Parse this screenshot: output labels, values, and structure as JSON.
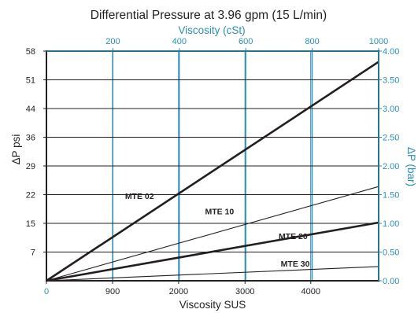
{
  "chart_data": {
    "type": "line",
    "title": "Differential Pressure at 3.96 gpm (15 L/min)",
    "x_axis_bottom": {
      "label": "Viscosity SUS",
      "range": [
        0,
        4650
      ],
      "ticks": [
        {
          "value": 0,
          "label": "0"
        },
        {
          "value": 926,
          "label": "900"
        },
        {
          "value": 1850,
          "label": "2000"
        },
        {
          "value": 2780,
          "label": "3000"
        },
        {
          "value": 3700,
          "label": "4000"
        }
      ]
    },
    "x_axis_top": {
      "label": "Viscosity (cSt)",
      "range": [
        0,
        1000
      ],
      "ticks": [
        "200",
        "400",
        "600",
        "800",
        "1000"
      ],
      "tick_values": [
        200,
        400,
        600,
        800,
        1000
      ]
    },
    "y_axis_left": {
      "label": "ΔP psi",
      "range": [
        0,
        58
      ],
      "ticks": [
        "7",
        "15",
        "22",
        "29",
        "36",
        "44",
        "51",
        "58"
      ],
      "tick_values": [
        7.25,
        14.5,
        21.75,
        29,
        36.25,
        43.5,
        50.75,
        58
      ]
    },
    "y_axis_right": {
      "label": "ΔP (bar)",
      "range": [
        0,
        4.0
      ],
      "ticks": [
        "0.00",
        "0.50",
        "1.00",
        "1.50",
        "2.00",
        "2.50",
        "3.00",
        "3.50",
        "4.00"
      ],
      "tick_values": [
        0,
        0.5,
        1.0,
        1.5,
        2.0,
        2.5,
        3.0,
        3.5,
        4.0
      ]
    },
    "grid": {
      "vertical": true,
      "horizontal": true
    },
    "series": [
      {
        "name": "MTE 02",
        "x": [
          0,
          4650
        ],
        "y": [
          0,
          55.3
        ],
        "label": {
          "x": 1100,
          "y": 21.5
        }
      },
      {
        "name": "MTE 10",
        "x": [
          0,
          4650
        ],
        "y": [
          0,
          23.8
        ],
        "label": {
          "x": 2220,
          "y": 17.6
        }
      },
      {
        "name": "MTE 20",
        "x": [
          0,
          4650
        ],
        "y": [
          0,
          14.7
        ],
        "label": {
          "x": 3250,
          "y": 11.3
        }
      },
      {
        "name": "MTE 30",
        "x": [
          0,
          4650
        ],
        "y": [
          0,
          3.6
        ],
        "label": {
          "x": 3280,
          "y": 4.4
        }
      }
    ]
  }
}
